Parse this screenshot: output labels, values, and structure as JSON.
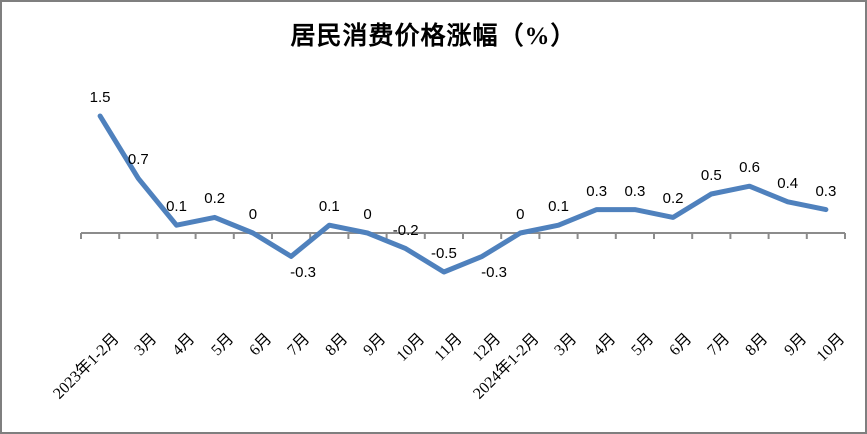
{
  "chart_data": {
    "type": "line",
    "title": "居民消费价格涨幅（%）",
    "categories": [
      "2023年1-2月",
      "3月",
      "4月",
      "5月",
      "6月",
      "7月",
      "8月",
      "9月",
      "10月",
      "11月",
      "12月",
      "2024年1-2月",
      "3月",
      "4月",
      "5月",
      "6月",
      "7月",
      "8月",
      "9月",
      "10月"
    ],
    "series": [
      {
        "name": "居民消费价格涨幅",
        "values": [
          1.5,
          0.7,
          0.1,
          0.2,
          0,
          -0.3,
          0.1,
          0,
          -0.2,
          -0.5,
          -0.3,
          0,
          0.1,
          0.3,
          0.3,
          0.2,
          0.5,
          0.6,
          0.4,
          0.3
        ],
        "data_labels": [
          "1.5",
          "0.7",
          "0.1",
          "0.2",
          "0",
          "-0.3",
          "0.1",
          "0",
          "-0.2",
          "-0.5",
          "-0.3",
          "0",
          "0.1",
          "0.3",
          "0.3",
          "0.2",
          "0.5",
          "0.6",
          "0.4",
          "0.3"
        ],
        "label_placement": [
          "above",
          "above",
          "above",
          "above",
          "above",
          "below",
          "above",
          "above",
          "above",
          "above",
          "below",
          "above",
          "above",
          "above",
          "above",
          "above",
          "above",
          "above",
          "above",
          "above"
        ]
      }
    ],
    "xlabel": "",
    "ylabel": "",
    "ylim": [
      -1,
      2
    ],
    "grid": false,
    "legend_position": "none",
    "x_tick_label_rotation_deg": 45,
    "line_color": "#4F81BD",
    "axis_color": "#8C8C8C",
    "text_color": "#000000"
  }
}
